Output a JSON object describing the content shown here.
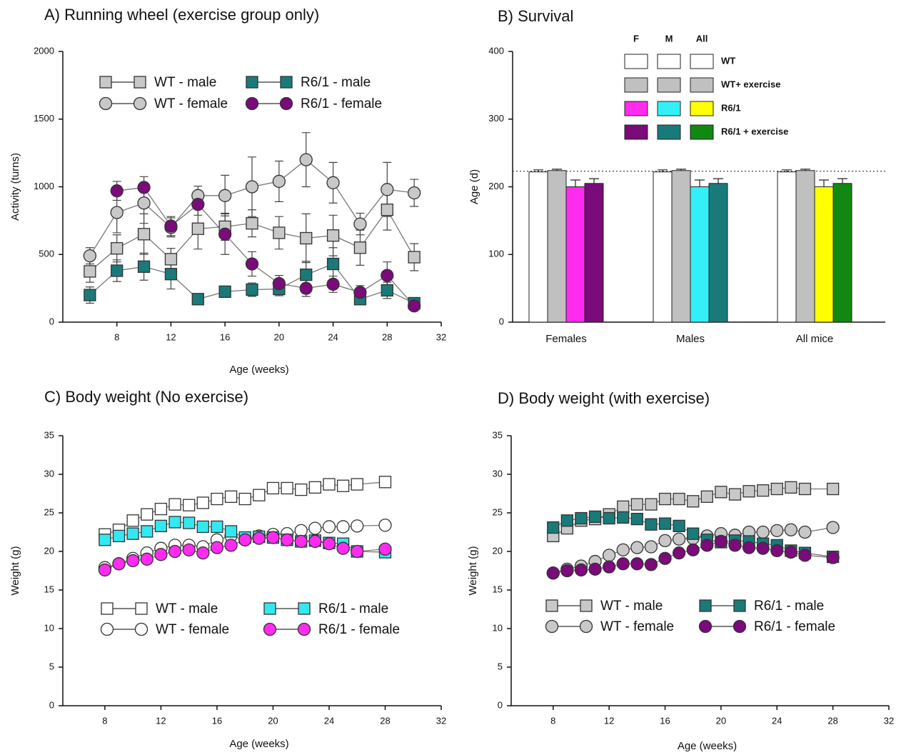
{
  "chart_data": [
    {
      "type": "line",
      "title": "A) Running wheel (exercise group only)",
      "x_label": "Age (weeks)",
      "y_label": "Activity (turns)",
      "x": [
        6,
        8,
        10,
        12,
        14,
        16,
        18,
        20,
        22,
        24,
        26,
        28,
        30
      ],
      "xlim": [
        4,
        32
      ],
      "xticks": [
        8,
        12,
        16,
        20,
        24,
        28,
        32
      ],
      "ylim": [
        0,
        2000
      ],
      "yticks": [
        0,
        500,
        1000,
        1500,
        2000
      ],
      "series": [
        {
          "name": "WT - male",
          "marker": "square",
          "color": "#c8c8c8",
          "values": [
            375,
            545,
            650,
            465,
            690,
            705,
            730,
            660,
            620,
            640,
            550,
            830,
            480
          ],
          "errors": [
            80,
            100,
            150,
            80,
            150,
            100,
            100,
            120,
            180,
            150,
            130,
            150,
            100
          ]
        },
        {
          "name": "WT - female",
          "marker": "circle",
          "color": "#c8c8c8",
          "values": [
            490,
            810,
            880,
            700,
            935,
            935,
            1000,
            1040,
            1200,
            1030,
            725,
            980,
            955
          ],
          "errors": [
            60,
            150,
            150,
            70,
            70,
            150,
            220,
            150,
            200,
            150,
            80,
            200,
            100
          ]
        },
        {
          "name": "R6/1 - male",
          "marker": "square",
          "color": "#1a7a7a",
          "values": [
            200,
            380,
            410,
            355,
            170,
            225,
            240,
            245,
            350,
            430,
            170,
            235,
            140
          ],
          "errors": [
            60,
            80,
            100,
            110,
            30,
            40,
            50,
            50,
            100,
            120,
            40,
            60,
            30
          ]
        },
        {
          "name": "R6/1 - female",
          "marker": "circle",
          "color": "#7b0a7b",
          "values": [
            null,
            970,
            995,
            710,
            870,
            650,
            430,
            285,
            250,
            280,
            220,
            345,
            120
          ],
          "errors": [
            null,
            70,
            80,
            70,
            80,
            150,
            90,
            60,
            60,
            60,
            50,
            100,
            30
          ]
        }
      ]
    },
    {
      "type": "bar",
      "title": "B) Survival",
      "y_label": "Age (d)",
      "categories": [
        "Females",
        "Males",
        "All mice"
      ],
      "legend_columns": [
        "F",
        "M",
        "All"
      ],
      "ylim": [
        0,
        400
      ],
      "yticks": [
        0,
        100,
        200,
        300,
        400
      ],
      "reference_line": 223,
      "series": [
        {
          "name": "WT",
          "colors": [
            "#ffffff",
            "#ffffff",
            "#ffffff"
          ],
          "values": [
            222,
            222,
            222
          ],
          "errors": [
            3,
            3,
            3
          ]
        },
        {
          "name": "WT+ exercise",
          "colors": [
            "#c0c0c0",
            "#c0c0c0",
            "#c0c0c0"
          ],
          "values": [
            224,
            224,
            224
          ],
          "errors": [
            2,
            2,
            2
          ]
        },
        {
          "name": "R6/1",
          "colors": [
            "#ff2cf0",
            "#33f0f8",
            "#ffff00"
          ],
          "values": [
            200,
            200,
            200
          ],
          "errors": [
            10,
            10,
            10
          ]
        },
        {
          "name": "R6/1 + exercise",
          "colors": [
            "#7b0a7b",
            "#1a7a7a",
            "#118811"
          ],
          "values": [
            205,
            205,
            205
          ],
          "errors": [
            7,
            7,
            7
          ]
        }
      ]
    },
    {
      "type": "line",
      "title": "C) Body weight (No exercise)",
      "x_label": "Age (weeks)",
      "y_label": "Weight (g)",
      "x": [
        8,
        9,
        10,
        11,
        12,
        13,
        14,
        15,
        16,
        17,
        18,
        19,
        20,
        21,
        22,
        23,
        24,
        25,
        26,
        28
      ],
      "xlim": [
        5,
        32
      ],
      "xticks": [
        8,
        12,
        16,
        20,
        24,
        28,
        32
      ],
      "ylim": [
        0,
        35
      ],
      "yticks": [
        0,
        5,
        10,
        15,
        20,
        25,
        30,
        35
      ],
      "series": [
        {
          "name": "WT - male",
          "marker": "square",
          "color": "#ffffff",
          "values": [
            22.2,
            22.8,
            24,
            24.8,
            25.5,
            26.1,
            26,
            26.3,
            26.8,
            27.1,
            26.8,
            27.3,
            28.2,
            28.2,
            28,
            28.3,
            28.7,
            28.5,
            28.7,
            29
          ]
        },
        {
          "name": "WT - female",
          "marker": "circle",
          "color": "#ffffff",
          "values": [
            17.9,
            18.4,
            19.1,
            19.8,
            20.4,
            20.8,
            20.8,
            20.6,
            21.5,
            22,
            21.5,
            22,
            22.2,
            22.3,
            22.7,
            23,
            23.2,
            23.2,
            23.3,
            23.4
          ]
        },
        {
          "name": "R6/1 - male",
          "marker": "square",
          "color": "#33e8f0",
          "values": [
            21.5,
            22,
            22.3,
            22.6,
            23.3,
            23.8,
            23.7,
            23.2,
            23.2,
            22.6,
            21.8,
            21.9,
            21.8,
            21.5,
            21.3,
            21.4,
            21.1,
            21,
            20,
            19.9
          ]
        },
        {
          "name": "R6/1 - female",
          "marker": "circle",
          "color": "#ff2cf0",
          "values": [
            17.6,
            18.4,
            18.8,
            19,
            19.6,
            20,
            20.2,
            19.8,
            20.5,
            20.8,
            21.5,
            21.7,
            21.8,
            21.5,
            21.3,
            21.3,
            21,
            20.4,
            20,
            20.3
          ]
        }
      ]
    },
    {
      "type": "line",
      "title": "D) Body weight (with exercise)",
      "x_label": "Age (weeks)",
      "y_label": "Weight (g)",
      "x": [
        8,
        9,
        10,
        11,
        12,
        13,
        14,
        15,
        16,
        17,
        18,
        19,
        20,
        21,
        22,
        23,
        24,
        25,
        26,
        28
      ],
      "xlim": [
        5,
        32
      ],
      "xticks": [
        8,
        12,
        16,
        20,
        24,
        28,
        32
      ],
      "ylim": [
        0,
        35
      ],
      "yticks": [
        0,
        5,
        10,
        15,
        20,
        25,
        30,
        35
      ],
      "series": [
        {
          "name": "WT - male",
          "marker": "square",
          "color": "#c8c8c8",
          "values": [
            22,
            23,
            24,
            24.2,
            24.8,
            25.8,
            26.1,
            26.1,
            26.8,
            26.8,
            26.5,
            27.1,
            27.7,
            27.4,
            27.8,
            27.9,
            28.1,
            28.3,
            28.1,
            28.1
          ]
        },
        {
          "name": "WT - female",
          "marker": "circle",
          "color": "#c8c8c8",
          "values": [
            17.2,
            17.7,
            18.1,
            18.7,
            19.5,
            20.2,
            20.5,
            20.6,
            21.4,
            21.6,
            21.7,
            22,
            22.3,
            22.1,
            22.5,
            22.5,
            22.7,
            22.8,
            22.5,
            23.1
          ]
        },
        {
          "name": "R6/1 - male",
          "marker": "square",
          "color": "#1a7a7a",
          "values": [
            23.1,
            24,
            24.3,
            24.5,
            24.3,
            24.4,
            24.2,
            23.5,
            23.6,
            23.3,
            22.3,
            21.5,
            21.2,
            21.4,
            21.3,
            21,
            20.8,
            20.1,
            19.8,
            19.3
          ]
        },
        {
          "name": "R6/1 - female",
          "marker": "circle",
          "color": "#7b0a7b",
          "values": [
            17.2,
            17.5,
            17.6,
            17.7,
            18,
            18.4,
            18.4,
            18.3,
            19.1,
            19.8,
            20.2,
            20.8,
            21.3,
            20.8,
            20.5,
            20.4,
            20.1,
            19.9,
            19.5,
            19.2
          ]
        }
      ]
    }
  ]
}
